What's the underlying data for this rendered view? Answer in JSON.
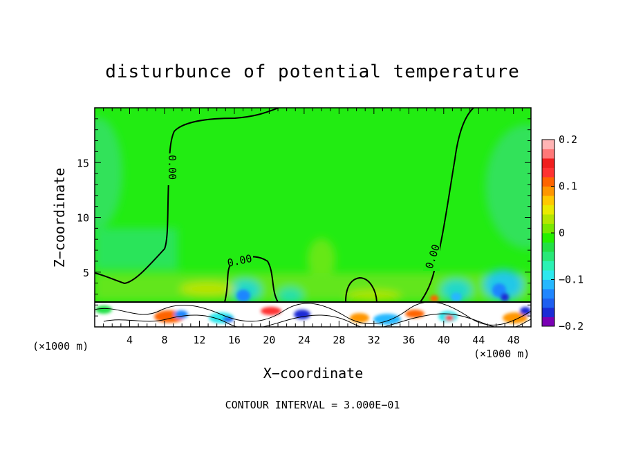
{
  "chart_data": {
    "type": "heatmap",
    "title": "disturbunce of potential temperature",
    "xlabel": "X−coordinate",
    "ylabel": "Z−coordinate",
    "x_unit_left": "(×1000 m)",
    "x_unit_right": "(×1000 m)",
    "xlim": [
      0,
      50
    ],
    "ylim": [
      0,
      20
    ],
    "x_ticks": [
      4,
      8,
      12,
      16,
      20,
      24,
      28,
      32,
      36,
      40,
      44,
      48
    ],
    "x_tick_labels": [
      "4",
      "8",
      "12",
      "16",
      "20",
      "24",
      "28",
      "32",
      "36",
      "40",
      "44",
      "48"
    ],
    "y_ticks": [
      5,
      10,
      15
    ],
    "y_tick_labels": [
      "5",
      "10",
      "15"
    ],
    "colorbar": {
      "min": -0.2,
      "max": 0.2,
      "ticks": [
        0.2,
        0.1,
        0,
        -0.1,
        -0.2
      ],
      "tick_labels": [
        "0.2",
        "0.1",
        "0",
        "−0.1",
        "−0.2"
      ],
      "colors": [
        "#7a00b4",
        "#1a2cd6",
        "#1e5ff0",
        "#1f86ff",
        "#25b8ff",
        "#2de8ee",
        "#2bf2b4",
        "#28e878",
        "#22e046",
        "#24f000",
        "#78e800",
        "#b4e600",
        "#eaea00",
        "#ffc800",
        "#ff9600",
        "#ff6400",
        "#ff3232",
        "#f01e1e",
        "#ff7878",
        "#ffb4b4"
      ]
    },
    "contour_labels": [
      "0.00",
      "0.00",
      "0.00"
    ],
    "footer": "CONTOUR INTERVAL = 3.000E−01"
  }
}
